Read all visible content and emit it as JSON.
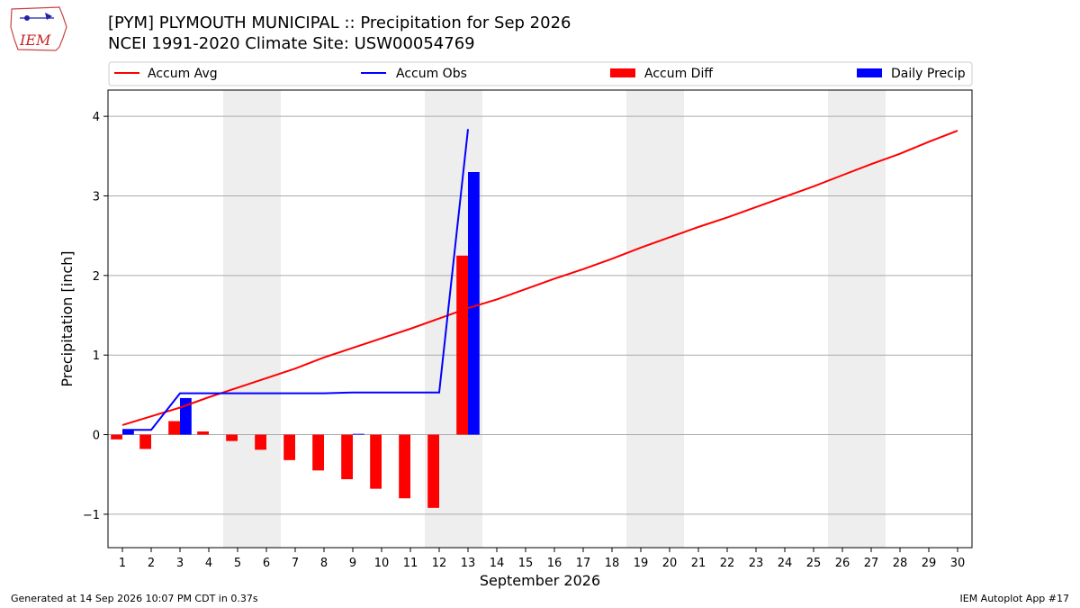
{
  "header": {
    "logo_text": "IEM",
    "title_line1": "[PYM] PLYMOUTH MUNICIPAL :: Precipitation for Sep 2026",
    "title_line2": "NCEI 1991-2020 Climate Site: USW00054769"
  },
  "footer": {
    "generated": "Generated at 14 Sep 2026 10:07 PM CDT in 0.37s",
    "app": "IEM Autoplot App #17"
  },
  "colors": {
    "avg": "#ff0000",
    "obs": "#0000ff",
    "diff": "#ff0000",
    "daily": "#0000ff",
    "weekend": "#eeeeee",
    "grid": "#aaaaaa"
  },
  "chart_data": {
    "type": "bar",
    "xlabel": "September 2026",
    "ylabel": "Precipitation [inch]",
    "xlim": [
      0.5,
      30.5
    ],
    "ylim": [
      -1.42,
      4.33
    ],
    "yticks": [
      -1,
      0,
      1,
      2,
      3,
      4
    ],
    "ytick_labels": [
      "−1",
      "0",
      "1",
      "2",
      "3",
      "4"
    ],
    "x": [
      1,
      2,
      3,
      4,
      5,
      6,
      7,
      8,
      9,
      10,
      11,
      12,
      13,
      14,
      15,
      16,
      17,
      18,
      19,
      20,
      21,
      22,
      23,
      24,
      25,
      26,
      27,
      28,
      29,
      30
    ],
    "weekend_days": [
      5,
      6,
      12,
      13,
      19,
      20,
      26,
      27
    ],
    "grid": "y",
    "legend_position": "top",
    "series": [
      {
        "name": "Accum Avg",
        "kind": "line",
        "x": [
          1,
          2,
          3,
          4,
          5,
          6,
          7,
          8,
          9,
          10,
          11,
          12,
          13,
          14,
          15,
          16,
          17,
          18,
          19,
          20,
          21,
          22,
          23,
          24,
          25,
          26,
          27,
          28,
          29,
          30
        ],
        "values": [
          0.12,
          0.23,
          0.34,
          0.47,
          0.59,
          0.71,
          0.83,
          0.97,
          1.09,
          1.21,
          1.33,
          1.46,
          1.59,
          1.7,
          1.83,
          1.96,
          2.08,
          2.21,
          2.35,
          2.48,
          2.61,
          2.73,
          2.86,
          2.99,
          3.12,
          3.26,
          3.4,
          3.53,
          3.68,
          3.82
        ]
      },
      {
        "name": "Accum Obs",
        "kind": "line",
        "x": [
          1,
          2,
          3,
          4,
          5,
          6,
          7,
          8,
          9,
          10,
          11,
          12,
          13
        ],
        "values": [
          0.06,
          0.06,
          0.52,
          0.52,
          0.52,
          0.52,
          0.52,
          0.52,
          0.53,
          0.53,
          0.53,
          0.53,
          3.84
        ]
      },
      {
        "name": "Accum Diff",
        "kind": "bar",
        "x": [
          1,
          2,
          3,
          4,
          5,
          6,
          7,
          8,
          9,
          10,
          11,
          12,
          13
        ],
        "values": [
          -0.06,
          -0.18,
          0.17,
          0.04,
          -0.08,
          -0.19,
          -0.32,
          -0.45,
          -0.56,
          -0.68,
          -0.8,
          -0.92,
          2.25
        ]
      },
      {
        "name": "Daily Precip",
        "kind": "bar",
        "x": [
          1,
          2,
          3,
          4,
          5,
          6,
          7,
          8,
          9,
          10,
          11,
          12,
          13
        ],
        "values": [
          0.06,
          0,
          0.46,
          0,
          0,
          0,
          0,
          0,
          0.01,
          0,
          0,
          0,
          3.3
        ]
      }
    ]
  }
}
